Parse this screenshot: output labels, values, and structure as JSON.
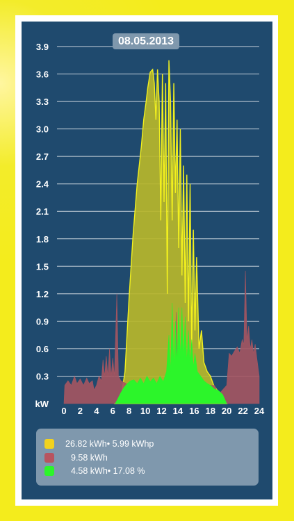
{
  "date": "08.05.2013",
  "colors": {
    "production": "#f2f01e",
    "production_fill": "#b7b62a",
    "consumption": "#a55560",
    "self_consumption": "#2cf52a"
  },
  "chart_data": {
    "type": "area",
    "ylabel": "kW",
    "ylim": [
      0,
      3.9
    ],
    "xlim": [
      0,
      24
    ],
    "y_ticks": [
      "3.9",
      "3.6",
      "3.3",
      "3.0",
      "2.7",
      "2.4",
      "2.1",
      "1.8",
      "1.5",
      "1.2",
      "0.9",
      "0.6",
      "0.3",
      "kW"
    ],
    "x_ticks": [
      "0",
      "2",
      "4",
      "6",
      "8",
      "10",
      "12",
      "14",
      "16",
      "18",
      "20",
      "22",
      "24"
    ],
    "grid": true,
    "series": [
      {
        "key": "production",
        "points": [
          [
            6.3,
            0
          ],
          [
            7.0,
            0.05
          ],
          [
            7.5,
            0.35
          ],
          [
            8.0,
            1.15
          ],
          [
            8.5,
            1.85
          ],
          [
            9.0,
            2.4
          ],
          [
            9.5,
            2.8
          ],
          [
            9.8,
            3.1
          ],
          [
            10.1,
            3.3
          ],
          [
            10.3,
            3.45
          ],
          [
            10.6,
            3.62
          ],
          [
            10.9,
            3.65
          ],
          [
            11.1,
            3.5
          ],
          [
            11.3,
            3.1
          ],
          [
            11.5,
            3.65
          ],
          [
            11.7,
            3.3
          ],
          [
            11.9,
            2.0
          ],
          [
            12.1,
            3.6
          ],
          [
            12.3,
            2.2
          ],
          [
            12.5,
            3.5
          ],
          [
            12.7,
            1.2
          ],
          [
            12.9,
            3.75
          ],
          [
            13.1,
            3.3
          ],
          [
            13.3,
            2.0
          ],
          [
            13.5,
            3.5
          ],
          [
            13.7,
            2.3
          ],
          [
            13.9,
            3.1
          ],
          [
            14.1,
            1.7
          ],
          [
            14.3,
            3.0
          ],
          [
            14.5,
            1.4
          ],
          [
            14.7,
            2.6
          ],
          [
            14.9,
            1.1
          ],
          [
            15.1,
            2.5
          ],
          [
            15.3,
            0.9
          ],
          [
            15.5,
            2.4
          ],
          [
            15.7,
            0.6
          ],
          [
            15.9,
            1.9
          ],
          [
            16.1,
            0.8
          ],
          [
            16.3,
            1.6
          ],
          [
            16.6,
            0.6
          ],
          [
            16.9,
            0.8
          ],
          [
            17.2,
            0.45
          ],
          [
            17.6,
            0.35
          ],
          [
            18.0,
            0.3
          ],
          [
            18.4,
            0.2
          ],
          [
            18.8,
            0.15
          ],
          [
            19.2,
            0.12
          ],
          [
            19.6,
            0.05
          ],
          [
            20.0,
            0.0
          ]
        ]
      },
      {
        "key": "consumption",
        "points": [
          [
            0.0,
            0.0
          ],
          [
            0.1,
            0.2
          ],
          [
            0.5,
            0.25
          ],
          [
            0.9,
            0.2
          ],
          [
            1.3,
            0.3
          ],
          [
            1.6,
            0.22
          ],
          [
            2.0,
            0.27
          ],
          [
            2.4,
            0.2
          ],
          [
            2.8,
            0.28
          ],
          [
            3.1,
            0.22
          ],
          [
            3.5,
            0.25
          ],
          [
            3.7,
            0.15
          ],
          [
            4.0,
            0.2
          ],
          [
            4.3,
            0.3
          ],
          [
            4.6,
            0.25
          ],
          [
            4.8,
            0.48
          ],
          [
            5.0,
            0.3
          ],
          [
            5.2,
            0.52
          ],
          [
            5.4,
            0.3
          ],
          [
            5.6,
            0.6
          ],
          [
            5.8,
            0.3
          ],
          [
            6.0,
            0.5
          ],
          [
            6.2,
            0.3
          ],
          [
            6.5,
            1.2
          ],
          [
            6.7,
            0.3
          ],
          [
            7.0,
            0.25
          ],
          [
            8.0,
            0.2
          ],
          [
            9.0,
            0.2
          ],
          [
            10.0,
            0.2
          ],
          [
            11.0,
            0.22
          ],
          [
            12.0,
            0.22
          ],
          [
            13.0,
            0.2
          ],
          [
            13.5,
            0.2
          ],
          [
            13.8,
            1.0
          ],
          [
            14.0,
            0.2
          ],
          [
            14.5,
            0.2
          ],
          [
            15.0,
            0.3
          ],
          [
            16.0,
            0.2
          ],
          [
            17.0,
            0.2
          ],
          [
            18.0,
            0.2
          ],
          [
            18.5,
            0.2
          ],
          [
            19.0,
            0.1
          ],
          [
            19.5,
            0.15
          ],
          [
            20.0,
            0.2
          ],
          [
            20.3,
            0.55
          ],
          [
            20.6,
            0.52
          ],
          [
            21.0,
            0.58
          ],
          [
            21.3,
            0.62
          ],
          [
            21.6,
            0.55
          ],
          [
            21.9,
            0.7
          ],
          [
            22.1,
            0.65
          ],
          [
            22.3,
            1.45
          ],
          [
            22.5,
            0.7
          ],
          [
            22.7,
            0.85
          ],
          [
            22.9,
            0.6
          ],
          [
            23.1,
            0.7
          ],
          [
            23.3,
            0.55
          ],
          [
            23.5,
            0.65
          ],
          [
            23.7,
            0.5
          ],
          [
            24.0,
            0.3
          ],
          [
            24.0,
            0.0
          ]
        ]
      },
      {
        "key": "self_consumption",
        "points": [
          [
            6.3,
            0
          ],
          [
            6.6,
            0.05
          ],
          [
            7.0,
            0.12
          ],
          [
            7.4,
            0.18
          ],
          [
            7.8,
            0.22
          ],
          [
            8.2,
            0.25
          ],
          [
            8.6,
            0.26
          ],
          [
            9.0,
            0.22
          ],
          [
            9.4,
            0.28
          ],
          [
            9.8,
            0.22
          ],
          [
            10.2,
            0.3
          ],
          [
            10.6,
            0.24
          ],
          [
            11.0,
            0.28
          ],
          [
            11.4,
            0.22
          ],
          [
            11.8,
            0.3
          ],
          [
            12.2,
            0.24
          ],
          [
            12.6,
            0.35
          ],
          [
            12.9,
            0.75
          ],
          [
            13.1,
            0.35
          ],
          [
            13.3,
            1.1
          ],
          [
            13.5,
            0.4
          ],
          [
            13.7,
            0.9
          ],
          [
            13.9,
            0.45
          ],
          [
            14.1,
            1.05
          ],
          [
            14.3,
            0.5
          ],
          [
            14.5,
            1.05
          ],
          [
            14.7,
            0.5
          ],
          [
            14.9,
            0.95
          ],
          [
            15.1,
            0.45
          ],
          [
            15.3,
            0.8
          ],
          [
            15.5,
            0.45
          ],
          [
            15.7,
            0.7
          ],
          [
            15.9,
            0.4
          ],
          [
            16.1,
            0.55
          ],
          [
            16.4,
            0.35
          ],
          [
            16.8,
            0.3
          ],
          [
            17.2,
            0.25
          ],
          [
            17.6,
            0.22
          ],
          [
            18.0,
            0.2
          ],
          [
            18.5,
            0.16
          ],
          [
            19.0,
            0.14
          ],
          [
            19.5,
            0.1
          ],
          [
            20.0,
            0.0
          ]
        ]
      }
    ]
  },
  "legend": {
    "production_text": "26.82 kWh• 5.99 kWhp",
    "consumption_text": "9.58 kWh",
    "self_consumption_text": "4.58 kWh• 17.08 %"
  }
}
